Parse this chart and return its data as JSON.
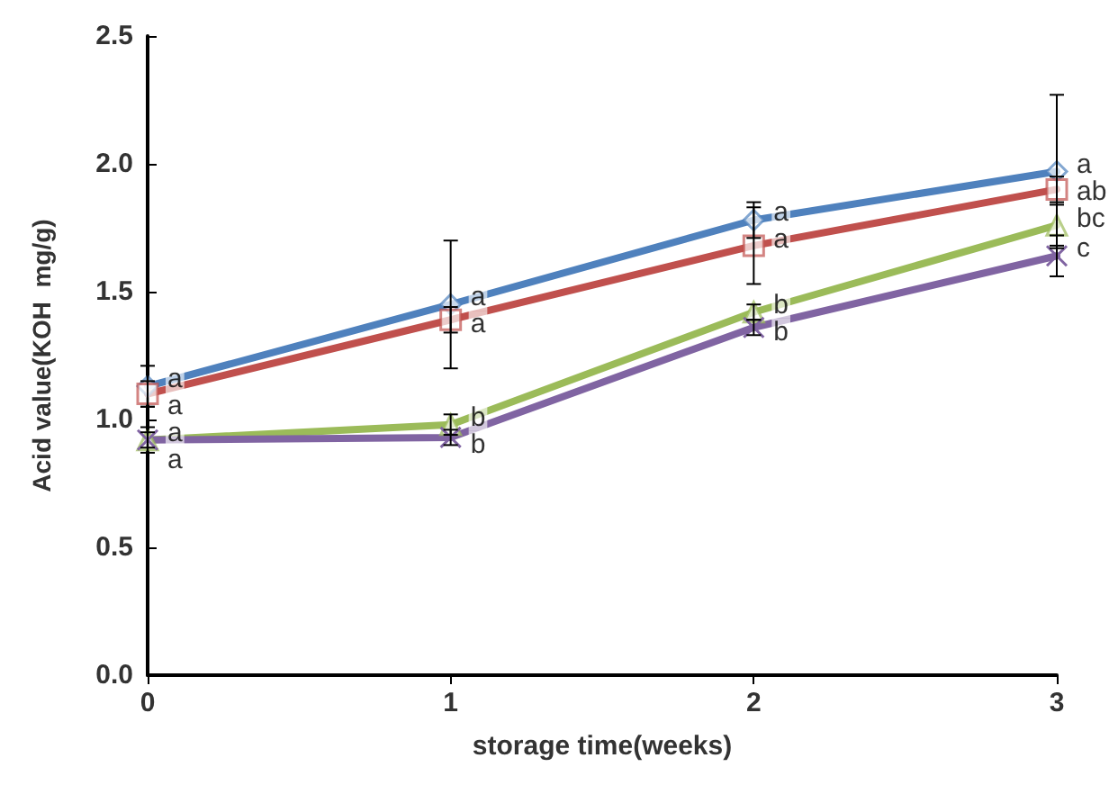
{
  "chart_data": {
    "type": "line",
    "xlabel": "storage time(weeks)",
    "ylabel": "Acid value(KOH  mg/g)",
    "x": [
      0,
      1,
      2,
      3
    ],
    "series": [
      {
        "color": "#4f81bd",
        "marker": "diamond",
        "values": [
          1.13,
          1.45,
          1.78,
          1.97
        ],
        "errors": [
          0.08,
          0.25,
          0.07,
          0.3
        ]
      },
      {
        "color": "#c0504d",
        "marker": "square",
        "values": [
          1.1,
          1.39,
          1.68,
          1.9
        ],
        "errors": [
          0.05,
          0.05,
          0.15,
          0.05
        ]
      },
      {
        "color": "#9bbb59",
        "marker": "triangle",
        "values": [
          0.92,
          0.98,
          1.42,
          1.76
        ],
        "errors": [
          0.05,
          0.04,
          0.03,
          0.08
        ]
      },
      {
        "color": "#8064a2",
        "marker": "cross",
        "values": [
          0.92,
          0.93,
          1.36,
          1.64
        ],
        "errors": [
          0.03,
          0.03,
          0.03,
          0.08
        ]
      }
    ],
    "xlim": [
      0,
      3
    ],
    "xticks": [
      0,
      1,
      2,
      3
    ],
    "ylim": [
      0,
      2.5
    ],
    "yticks": [
      {
        "value": 0,
        "label": "0.0"
      },
      0.5,
      {
        "value": 1,
        "label": "1.0"
      },
      1.5,
      {
        "value": 2,
        "label": "2.0"
      },
      2.5
    ],
    "grid": false,
    "line_style": "solid",
    "annotations": [
      {
        "text": "a",
        "x": 0,
        "y": 1.13
      },
      {
        "text": "a",
        "x": 0,
        "y": 1.1
      },
      {
        "text": "a",
        "x": 0,
        "y": 0.92
      },
      {
        "text": "a",
        "x": 0,
        "y": 0.92
      },
      {
        "text": "a",
        "x": 1,
        "y": 1.45
      },
      {
        "text": "a",
        "x": 1,
        "y": 1.39
      },
      {
        "text": "b",
        "x": 1,
        "y": 0.98
      },
      {
        "text": "b",
        "x": 1,
        "y": 0.93
      },
      {
        "text": "a",
        "x": 2,
        "y": 1.78
      },
      {
        "text": "a",
        "x": 2,
        "y": 1.68
      },
      {
        "text": "b",
        "x": 2,
        "y": 1.42
      },
      {
        "text": "b",
        "x": 2,
        "y": 1.36
      },
      {
        "text": "a",
        "x": 3,
        "y": 1.97
      },
      {
        "text": "ab",
        "x": 3,
        "y": 1.9
      },
      {
        "text": "bc",
        "x": 3,
        "y": 1.76
      },
      {
        "text": "c",
        "x": 3,
        "y": 1.64
      }
    ]
  }
}
